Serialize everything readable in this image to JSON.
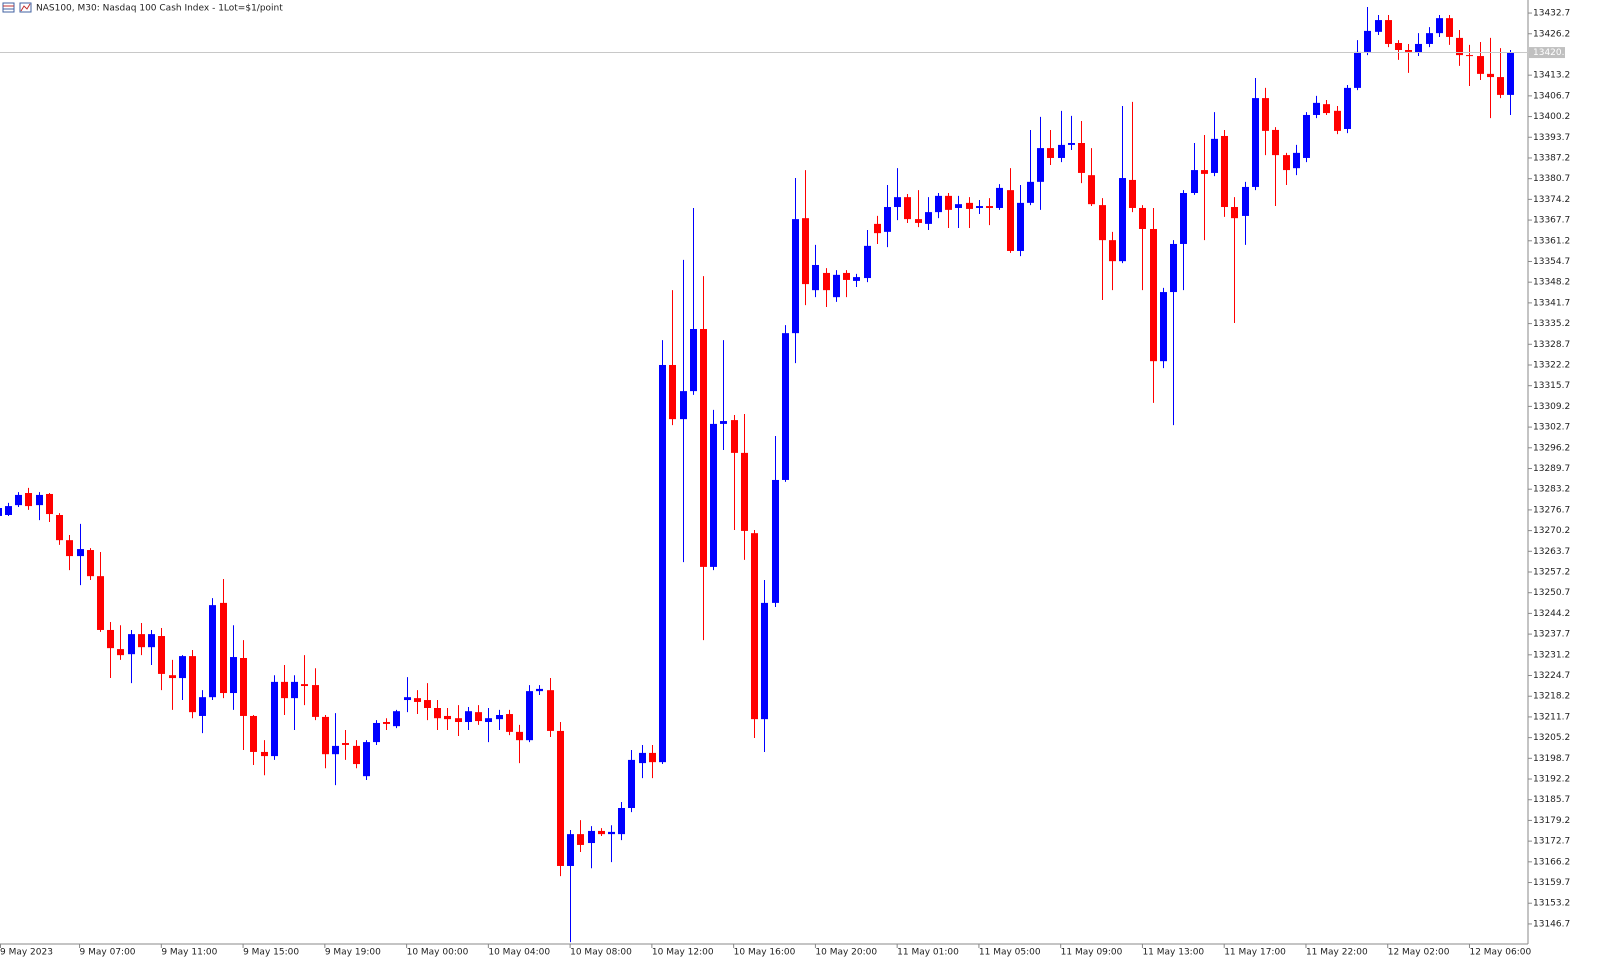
{
  "chart_data": {
    "type": "candlestick",
    "title": "NAS100, M30:  Nasdaq 100 Cash Index - 1Lot=$1/point",
    "up_color": "#0000ff",
    "down_color": "#ff0000",
    "grid": false,
    "ylim": [
      13140.4,
      13436.8
    ],
    "yticks": [
      13146.7,
      13153.2,
      13159.7,
      13166.2,
      13172.7,
      13179.2,
      13185.7,
      13192.2,
      13198.7,
      13205.2,
      13211.7,
      13218.2,
      13224.7,
      13231.2,
      13237.7,
      13244.2,
      13250.7,
      13257.2,
      13263.7,
      13270.2,
      13276.7,
      13283.2,
      13289.7,
      13296.2,
      13302.7,
      13309.2,
      13315.7,
      13322.2,
      13328.7,
      13335.2,
      13341.7,
      13348.2,
      13354.7,
      13361.2,
      13367.7,
      13374.2,
      13380.7,
      13387.2,
      13393.7,
      13400.2,
      13406.7,
      13413.2,
      13426.2,
      13432.7
    ],
    "last_price": 13420.3,
    "categories": [
      "9 May 2023",
      null,
      null,
      null,
      null,
      null,
      null,
      null,
      "9 May 07:00",
      null,
      null,
      null,
      null,
      null,
      null,
      null,
      "9 May 11:00",
      null,
      null,
      null,
      null,
      null,
      null,
      null,
      "9 May 15:00",
      null,
      null,
      null,
      null,
      null,
      null,
      null,
      "9 May 19:00",
      null,
      null,
      null,
      null,
      null,
      null,
      null,
      "10 May 00:00",
      null,
      null,
      null,
      null,
      null,
      null,
      null,
      "10 May 04:00",
      null,
      null,
      null,
      null,
      null,
      null,
      null,
      "10 May 08:00",
      null,
      null,
      null,
      null,
      null,
      null,
      null,
      "10 May 12:00",
      null,
      null,
      null,
      null,
      null,
      null,
      null,
      "10 May 16:00",
      null,
      null,
      null,
      null,
      null,
      null,
      null,
      "10 May 20:00",
      null,
      null,
      null,
      null,
      null,
      null,
      null,
      "11 May 01:00",
      null,
      null,
      null,
      null,
      null,
      null,
      null,
      "11 May 05:00",
      null,
      null,
      null,
      null,
      null,
      null,
      null,
      "11 May 09:00",
      null,
      null,
      null,
      null,
      null,
      null,
      null,
      "11 May 13:00",
      null,
      null,
      null,
      null,
      null,
      null,
      null,
      "11 May 17:00",
      null,
      null,
      null,
      null,
      null,
      null,
      null,
      "11 May 22:00",
      null,
      null,
      null,
      null,
      null,
      null,
      null,
      "12 May 02:00",
      null,
      null,
      null,
      null,
      null,
      null,
      null,
      "12 May 06:00",
      null,
      null,
      null,
      null
    ],
    "open": [
      13274.8,
      13275.1,
      13278.2,
      13282.0,
      13278.2,
      13281.7,
      13275.1,
      13267.2,
      13262.2,
      13264.1,
      13255.9,
      13239.0,
      13233.0,
      13231.4,
      13237.7,
      13233.6,
      13237.1,
      13224.8,
      13223.9,
      13230.8,
      13212.0,
      13217.9,
      13247.5,
      13219.2,
      13230.2,
      13212.0,
      13200.7,
      13199.4,
      13222.7,
      13217.6,
      13222.0,
      13221.7,
      13211.7,
      13200.0,
      13203.5,
      13202.6,
      13193.1,
      13203.8,
      13210.1,
      13208.8,
      13217.0,
      13217.6,
      13217.0,
      13214.5,
      13212.0,
      13211.3,
      13210.1,
      13213.2,
      13210.1,
      13211.0,
      13212.6,
      13207.0,
      13204.4,
      13219.8,
      13220.1,
      13207.3,
      13164.9,
      13174.9,
      13172.1,
      13175.9,
      13174.9,
      13174.9,
      13183.1,
      13197.2,
      13200.4,
      13197.5,
      13322.2,
      13305.2,
      13314.0,
      13333.5,
      13258.8,
      13303.7,
      13304.9,
      13294.6,
      13269.4,
      13211.0,
      13247.5,
      13286.1,
      13332.2,
      13368.3,
      13345.7,
      13351.1,
      13343.5,
      13351.1,
      13348.6,
      13349.5,
      13366.5,
      13364.0,
      13371.8,
      13374.9,
      13368.0,
      13366.5,
      13370.2,
      13375.3,
      13371.5,
      13373.1,
      13371.5,
      13372.1,
      13371.5,
      13377.1,
      13358.0,
      13373.1,
      13379.7,
      13390.3,
      13387.2,
      13391.3,
      13391.9,
      13381.8,
      13372.4,
      13361.4,
      13354.8,
      13380.3,
      13371.5,
      13364.9,
      13323.4,
      13345.1,
      13360.2,
      13376.2,
      13383.4,
      13382.5,
      13394.1,
      13371.8,
      13369.0,
      13378.1,
      13406.0,
      13396.0,
      13388.1,
      13384.0,
      13387.2,
      13400.7,
      13404.1,
      13402.0,
      13396.3,
      13409.2,
      13420.5,
      13426.8,
      13430.5,
      13423.3,
      13421.1,
      13420.2,
      13423.0,
      13426.4,
      13431.1,
      13424.9,
      13419.5,
      13419.2,
      13413.6,
      13412.6,
      13407.0
    ],
    "high": [
      13278.5,
      13278.9,
      13282.3,
      13283.6,
      13282.3,
      13282.0,
      13275.7,
      13268.8,
      13272.3,
      13264.7,
      13263.5,
      13241.5,
      13240.5,
      13239.0,
      13241.2,
      13239.0,
      13239.6,
      13229.6,
      13231.1,
      13232.7,
      13220.1,
      13249.0,
      13255.0,
      13240.5,
      13235.8,
      13212.3,
      13204.4,
      13224.8,
      13228.0,
      13224.8,
      13231.1,
      13227.0,
      13212.3,
      13212.9,
      13207.6,
      13204.4,
      13204.4,
      13210.7,
      13211.3,
      13213.9,
      13224.2,
      13220.1,
      13222.3,
      13217.0,
      13214.5,
      13215.4,
      13214.8,
      13215.4,
      13214.5,
      13213.9,
      13213.9,
      13209.2,
      13221.7,
      13221.7,
      13223.9,
      13210.1,
      13176.2,
      13179.3,
      13177.4,
      13176.8,
      13177.7,
      13185.0,
      13201.3,
      13202.9,
      13202.9,
      13330.0,
      13345.7,
      13355.2,
      13371.5,
      13350.1,
      13308.1,
      13330.0,
      13306.5,
      13306.8,
      13270.4,
      13254.7,
      13299.9,
      13334.7,
      13380.9,
      13383.4,
      13359.9,
      13352.6,
      13352.0,
      13352.0,
      13350.8,
      13364.6,
      13369.0,
      13378.7,
      13384.0,
      13375.9,
      13377.1,
      13374.9,
      13376.2,
      13376.2,
      13375.3,
      13374.9,
      13374.0,
      13374.6,
      13379.0,
      13384.0,
      13378.7,
      13396.0,
      13400.1,
      13396.0,
      13402.0,
      13400.4,
      13398.8,
      13390.3,
      13374.6,
      13364.0,
      13403.5,
      13404.8,
      13372.4,
      13371.5,
      13346.4,
      13361.4,
      13377.1,
      13391.9,
      13394.4,
      13401.6,
      13396.0,
      13374.9,
      13379.7,
      13412.3,
      13409.2,
      13396.9,
      13388.8,
      13391.3,
      13401.6,
      13406.7,
      13405.4,
      13403.5,
      13410.1,
      13424.2,
      13434.6,
      13432.1,
      13432.1,
      13424.2,
      13423.0,
      13426.4,
      13428.3,
      13432.1,
      13432.1,
      13427.4,
      13422.7,
      13423.6,
      13424.9,
      13421.7,
      13421.1
    ],
    "low": [
      13274.1,
      13274.8,
      13277.6,
      13276.7,
      13273.5,
      13272.9,
      13265.7,
      13257.8,
      13253.1,
      13254.7,
      13238.4,
      13223.9,
      13229.6,
      13222.3,
      13231.1,
      13228.0,
      13220.1,
      13213.9,
      13217.0,
      13211.3,
      13206.6,
      13217.0,
      13217.6,
      13213.9,
      13201.3,
      13196.6,
      13193.4,
      13198.2,
      13212.3,
      13207.6,
      13215.4,
      13210.7,
      13195.6,
      13190.3,
      13198.2,
      13195.6,
      13191.9,
      13202.9,
      13207.6,
      13208.2,
      13213.2,
      13212.6,
      13210.7,
      13207.6,
      13207.6,
      13205.7,
      13207.6,
      13209.2,
      13203.8,
      13207.6,
      13206.0,
      13197.2,
      13203.8,
      13218.6,
      13205.4,
      13161.7,
      13141.0,
      13169.3,
      13164.2,
      13174.3,
      13166.1,
      13173.0,
      13181.8,
      13192.5,
      13192.5,
      13196.9,
      13303.3,
      13260.3,
      13312.8,
      13235.8,
      13257.8,
      13295.5,
      13270.4,
      13261.0,
      13205.1,
      13200.7,
      13246.2,
      13285.5,
      13322.8,
      13341.0,
      13343.5,
      13340.4,
      13342.0,
      13343.5,
      13346.7,
      13348.2,
      13360.2,
      13359.2,
      13367.7,
      13366.8,
      13365.5,
      13364.6,
      13368.3,
      13365.2,
      13365.2,
      13365.2,
      13369.6,
      13366.1,
      13370.9,
      13357.4,
      13356.4,
      13372.4,
      13370.9,
      13385.0,
      13385.9,
      13389.7,
      13379.3,
      13372.1,
      13342.6,
      13345.7,
      13354.2,
      13370.2,
      13345.7,
      13310.3,
      13321.2,
      13303.3,
      13345.7,
      13375.6,
      13361.4,
      13381.5,
      13368.7,
      13335.4,
      13359.9,
      13377.1,
      13388.1,
      13372.1,
      13378.7,
      13381.8,
      13385.9,
      13399.7,
      13400.7,
      13394.7,
      13395.0,
      13408.5,
      13419.5,
      13425.8,
      13422.0,
      13418.0,
      13413.9,
      13419.2,
      13422.0,
      13425.2,
      13422.7,
      13416.1,
      13409.8,
      13411.7,
      13399.7,
      13406.0,
      13400.7
    ],
    "close": [
      13277.3,
      13277.9,
      13281.4,
      13277.9,
      13281.4,
      13275.4,
      13267.2,
      13262.2,
      13264.4,
      13255.9,
      13239.0,
      13233.3,
      13231.1,
      13237.7,
      13233.6,
      13237.7,
      13225.2,
      13223.9,
      13230.8,
      13213.2,
      13217.9,
      13246.8,
      13219.2,
      13230.5,
      13212.0,
      13200.7,
      13199.4,
      13222.7,
      13217.6,
      13222.7,
      13221.4,
      13211.7,
      13200.0,
      13202.6,
      13202.9,
      13196.9,
      13203.8,
      13209.8,
      13209.5,
      13213.5,
      13217.9,
      13216.4,
      13214.5,
      13211.3,
      13211.0,
      13210.1,
      13213.5,
      13210.4,
      13211.3,
      13212.3,
      13207.0,
      13204.4,
      13219.8,
      13220.5,
      13207.3,
      13164.9,
      13174.9,
      13171.5,
      13175.9,
      13174.9,
      13175.6,
      13183.1,
      13198.2,
      13200.4,
      13197.5,
      13322.2,
      13305.2,
      13314.0,
      13333.5,
      13258.8,
      13303.7,
      13304.6,
      13294.6,
      13270.1,
      13211.0,
      13247.5,
      13286.1,
      13332.2,
      13368.0,
      13347.6,
      13353.6,
      13345.7,
      13350.5,
      13348.9,
      13349.8,
      13359.6,
      13363.6,
      13371.8,
      13374.9,
      13368.0,
      13366.8,
      13370.2,
      13375.3,
      13370.9,
      13372.7,
      13371.2,
      13372.1,
      13371.5,
      13377.8,
      13358.0,
      13373.1,
      13379.7,
      13390.3,
      13387.2,
      13391.3,
      13391.9,
      13382.5,
      13372.7,
      13361.4,
      13354.8,
      13380.9,
      13371.5,
      13364.9,
      13323.4,
      13345.1,
      13360.2,
      13376.2,
      13383.4,
      13382.2,
      13393.2,
      13371.8,
      13368.3,
      13378.1,
      13406.0,
      13395.7,
      13388.1,
      13383.4,
      13388.8,
      13400.7,
      13404.5,
      13401.3,
      13395.7,
      13409.2,
      13420.5,
      13427.1,
      13430.5,
      13423.0,
      13421.1,
      13420.5,
      13423.0,
      13426.4,
      13431.1,
      13425.2,
      13419.5,
      13419.2,
      13413.6,
      13412.6,
      13407.0,
      13420.3
    ]
  }
}
